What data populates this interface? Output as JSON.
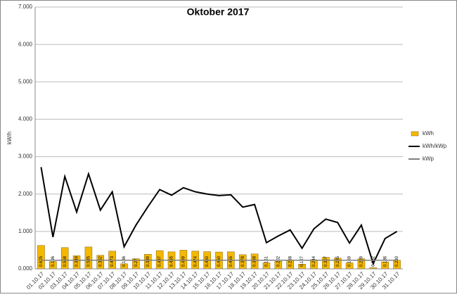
{
  "chart_data": {
    "type": "combo",
    "title": "Oktober 2017",
    "y_label": "kW/h",
    "categories": [
      "01.10.17",
      "02.10.17",
      "03.10.17",
      "04.10.17",
      "05.10.17",
      "06.10.17",
      "07.10.17",
      "08.10.17",
      "09.10.17",
      "10.10.17",
      "11.10.17",
      "12.10.17",
      "13.10.17",
      "14.10.17",
      "15.10.17",
      "16.10.17",
      "17.10.17",
      "18.10.17",
      "19.10.17",
      "20.10.17",
      "21.10.17",
      "22.10.17",
      "23.10.17",
      "24.10.17",
      "25.10.17",
      "26.10.17",
      "27.10.17",
      "28.10.17",
      "29.10.17",
      "30.10.17",
      "31.10.17"
    ],
    "series": [
      {
        "name": "kWh",
        "type": "bar",
        "color": "#f5b800",
        "values": [
          0.625,
          0.196,
          0.568,
          0.349,
          0.585,
          0.362,
          0.473,
          0.136,
          0.27,
          0.389,
          0.487,
          0.455,
          0.499,
          0.474,
          0.46,
          0.45,
          0.455,
          0.378,
          0.398,
          0.161,
          0.202,
          0.238,
          0.127,
          0.244,
          0.307,
          0.285,
          0.159,
          0.269,
          0.032,
          0.186,
          0.23
        ],
        "value_labels": [
          "0.625",
          "0.196",
          "0.568",
          "0.349",
          "0.585",
          "0.362",
          "0.473",
          "0.136",
          "0.27",
          "0.389",
          "0.487",
          "0.455",
          "0.499",
          "0.474",
          "0.460",
          "0.450",
          "0.455",
          "0.378",
          "0.398",
          "0.161",
          "0.202",
          "0.238",
          "0.127",
          "0.244",
          "0.307",
          "0.285",
          "0.159",
          "0.269",
          "0.032",
          "0.186",
          "0.230"
        ]
      },
      {
        "name": "kWh/kWp",
        "type": "line",
        "color": "#000000",
        "values": [
          2.72,
          0.85,
          2.47,
          1.52,
          2.54,
          1.57,
          2.06,
          0.59,
          1.17,
          1.66,
          2.12,
          1.97,
          2.17,
          2.06,
          2.0,
          1.96,
          1.98,
          1.65,
          1.72,
          0.7,
          0.88,
          1.04,
          0.55,
          1.07,
          1.33,
          1.24,
          0.69,
          1.17,
          0.14,
          0.81,
          1.0
        ]
      },
      {
        "name": "kWp",
        "type": "line",
        "color": "#808080",
        "values": [
          0.23,
          0.23,
          0.23,
          0.23,
          0.23,
          0.23,
          0.23,
          0.23,
          0.23,
          0.23,
          0.23,
          0.23,
          0.23,
          0.23,
          0.23,
          0.23,
          0.23,
          0.23,
          0.23,
          0.23,
          0.23,
          0.23,
          0.23,
          0.23,
          0.23,
          0.23,
          0.23,
          0.23,
          0.23,
          0.23,
          0.23
        ]
      }
    ],
    "ylim": [
      0,
      7
    ],
    "yticks": [
      {
        "value": 0,
        "label": "0.000"
      },
      {
        "value": 1,
        "label": "1.000"
      },
      {
        "value": 2,
        "label": "2.000"
      },
      {
        "value": 3,
        "label": "3.000"
      },
      {
        "value": 4,
        "label": "4.000"
      },
      {
        "value": 5,
        "label": "5.000"
      },
      {
        "value": 6,
        "label": "6.000"
      },
      {
        "value": 7,
        "label": "7.000"
      }
    ],
    "grid": true,
    "legend": "right"
  }
}
